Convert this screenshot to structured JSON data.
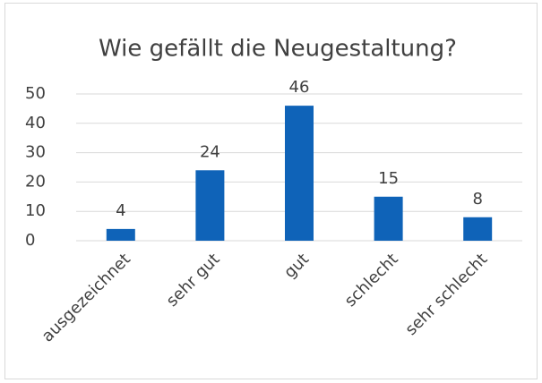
{
  "chart_data": {
    "type": "bar",
    "title": "Wie gefällt die Neugestaltung?",
    "categories": [
      "ausgezeichnet",
      "sehr gut",
      "gut",
      "schlecht",
      "sehr schlecht"
    ],
    "values": [
      4,
      24,
      46,
      15,
      8
    ],
    "color": "#0f63b8",
    "ylim": [
      0,
      50
    ],
    "yticks": [
      0,
      10,
      20,
      30,
      40,
      50
    ],
    "grid": true,
    "data_labels": true
  }
}
